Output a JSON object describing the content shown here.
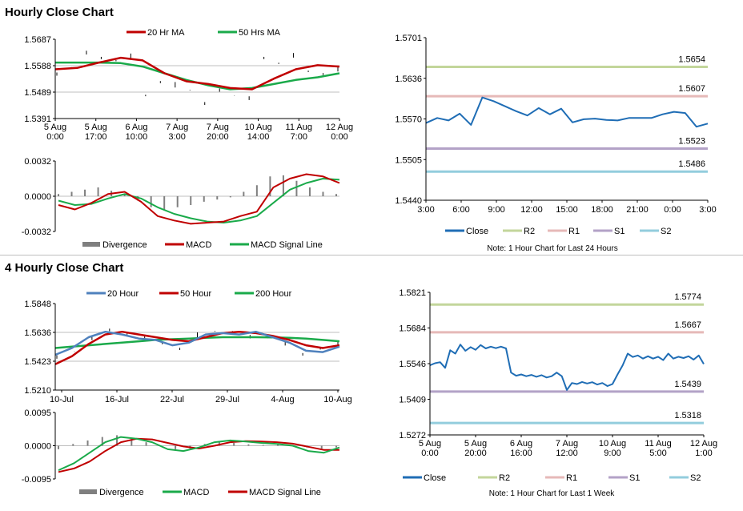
{
  "sections": {
    "hourly_title": "Hourly Close Chart",
    "four_hourly_title": "4 Hourly Close Chart"
  },
  "colors": {
    "red": "#c00000",
    "green": "#1aaa4a",
    "steel": "#4f81bd",
    "blue": "#1f6db5",
    "r2": "#c3d69b",
    "r1": "#e6b9b8",
    "s1": "#b3a2c7",
    "s2": "#93cddd",
    "bar": "#7f7f7f"
  },
  "chart_data": [
    {
      "id": "hourly_price",
      "type": "line",
      "legend": [
        "20 Hr MA",
        "50 Hrs MA"
      ],
      "y_ticks": [
        "1.5687",
        "1.5588",
        "1.5489",
        "1.5391"
      ],
      "ylim": [
        1.5391,
        1.5687
      ],
      "x_ticks": [
        [
          "5 Aug",
          "0:00"
        ],
        [
          "5 Aug",
          "17:00"
        ],
        [
          "6 Aug",
          "10:00"
        ],
        [
          "7 Aug",
          "3:00"
        ],
        [
          "7 Aug",
          "20:00"
        ],
        [
          "10 Aug",
          "14:00"
        ],
        [
          "11 Aug",
          "7:00"
        ],
        [
          "12 Aug",
          "0:00"
        ]
      ],
      "series": [
        {
          "name": "20 Hr MA",
          "values": [
            1.5575,
            1.558,
            1.56,
            1.5618,
            1.5608,
            1.556,
            1.553,
            1.552,
            1.5505,
            1.55,
            1.554,
            1.5575,
            1.559,
            1.5585
          ]
        },
        {
          "name": "50 Hrs MA",
          "values": [
            1.56,
            1.56,
            1.56,
            1.5598,
            1.5585,
            1.556,
            1.5535,
            1.5515,
            1.55,
            1.5505,
            1.552,
            1.5535,
            1.5545,
            1.556
          ]
        }
      ],
      "close": [
        1.556,
        1.5585,
        1.564,
        1.562,
        1.561,
        1.5628,
        1.548,
        1.553,
        1.552,
        1.55,
        1.545,
        1.55,
        1.548,
        1.547,
        1.562,
        1.56,
        1.563,
        1.557,
        1.556,
        1.558
      ]
    },
    {
      "id": "hourly_macd",
      "type": "line",
      "legend": [
        "Divergence",
        "MACD",
        "MACD Signal Line"
      ],
      "y_ticks": [
        "0.0032",
        "0.0000",
        "-0.0032"
      ],
      "ylim": [
        -0.0032,
        0.0032
      ],
      "divergence": [
        0.0002,
        0.0004,
        0.0006,
        0.0008,
        0.0005,
        0.0002,
        -0.0004,
        -0.001,
        -0.0012,
        -0.001,
        -0.0008,
        -0.0005,
        -0.0003,
        -0.0001,
        0.0004,
        0.001,
        0.0018,
        0.0019,
        0.0014,
        0.0008,
        0.0004,
        0.0002
      ],
      "series": [
        {
          "name": "MACD",
          "values": [
            -0.0008,
            -0.0012,
            -0.0006,
            0.0002,
            0.0004,
            -0.0005,
            -0.0018,
            -0.0022,
            -0.0025,
            -0.0024,
            -0.0023,
            -0.0018,
            -0.0014,
            0.0008,
            0.0016,
            0.002,
            0.0018,
            0.0012
          ]
        },
        {
          "name": "MACD Signal Line",
          "values": [
            -0.0004,
            -0.0008,
            -0.0007,
            -0.0002,
            0.0002,
            -0.0002,
            -0.001,
            -0.0016,
            -0.002,
            -0.0023,
            -0.0024,
            -0.0022,
            -0.0018,
            -0.0006,
            0.0006,
            0.0012,
            0.0016,
            0.0015
          ]
        }
      ]
    },
    {
      "id": "hourly_24h",
      "type": "line",
      "legend": [
        "Close",
        "R2",
        "R1",
        "S1",
        "S2"
      ],
      "y_ticks": [
        "1.5701",
        "1.5636",
        "1.5570",
        "1.5505",
        "1.5440"
      ],
      "ylim": [
        1.544,
        1.5701
      ],
      "x_ticks": [
        "3:00",
        "6:00",
        "9:00",
        "12:00",
        "15:00",
        "18:00",
        "21:00",
        "0:00",
        "3:00"
      ],
      "levels": [
        {
          "name": "R2",
          "label": "1.5654",
          "value": 1.5654
        },
        {
          "name": "R1",
          "label": "1.5607",
          "value": 1.5607
        },
        {
          "name": "S1",
          "label": "1.5523",
          "value": 1.5523
        },
        {
          "name": "S2",
          "label": "1.5486",
          "value": 1.5486
        }
      ],
      "series": [
        {
          "name": "Close",
          "values": [
            1.5564,
            1.5572,
            1.5568,
            1.5579,
            1.5561,
            1.5605,
            1.5599,
            1.5591,
            1.5583,
            1.5576,
            1.5588,
            1.5578,
            1.5587,
            1.5565,
            1.557,
            1.5571,
            1.5569,
            1.5568,
            1.5572,
            1.5572,
            1.5572,
            1.5578,
            1.5582,
            1.558,
            1.5558,
            1.5563
          ]
        }
      ],
      "note": "Note: 1 Hour Chart for Last 24 Hours"
    },
    {
      "id": "four_hourly_price",
      "type": "line",
      "legend": [
        "20 Hour",
        "50 Hour",
        "200 Hour"
      ],
      "y_ticks": [
        "1.5848",
        "1.5636",
        "1.5423",
        "1.5210"
      ],
      "ylim": [
        1.521,
        1.5848
      ],
      "x_ticks": [
        "10-Jul",
        "16-Jul",
        "22-Jul",
        "29-Jul",
        "4-Aug",
        "10-Aug"
      ],
      "series": [
        {
          "name": "20 Hour",
          "values": [
            1.547,
            1.552,
            1.56,
            1.564,
            1.562,
            1.559,
            1.558,
            1.554,
            1.556,
            1.562,
            1.563,
            1.562,
            1.564,
            1.56,
            1.556,
            1.55,
            1.549,
            1.553
          ]
        },
        {
          "name": "50 Hour",
          "values": [
            1.54,
            1.546,
            1.555,
            1.562,
            1.564,
            1.562,
            1.56,
            1.558,
            1.557,
            1.56,
            1.563,
            1.564,
            1.563,
            1.561,
            1.558,
            1.554,
            1.552,
            1.554
          ]
        },
        {
          "name": "200 Hour",
          "values": [
            1.552,
            1.553,
            1.554,
            1.555,
            1.556,
            1.557,
            1.558,
            1.5585,
            1.559,
            1.5595,
            1.56,
            1.56,
            1.56,
            1.5598,
            1.5595,
            1.559,
            1.558,
            1.557
          ]
        }
      ],
      "close": [
        1.546,
        1.55,
        1.56,
        1.566,
        1.563,
        1.56,
        1.556,
        1.552,
        1.562,
        1.565,
        1.564,
        1.561,
        1.56,
        1.556,
        1.548,
        1.552,
        1.556
      ]
    },
    {
      "id": "four_hourly_macd",
      "type": "line",
      "legend": [
        "Divergence",
        "MACD",
        "MACD Signal Line"
      ],
      "y_ticks": [
        "0.0095",
        "0.0000",
        "-0.0095"
      ],
      "ylim": [
        -0.0095,
        0.0095
      ],
      "divergence": [
        -0.001,
        0.0005,
        0.0015,
        0.0025,
        0.003,
        0.002,
        0.001,
        0.0,
        -0.001,
        -0.0008,
        0.0005,
        0.001,
        0.0008,
        0.0004,
        0.0002,
        0.0003,
        0.0,
        -0.0005,
        -0.0008,
        -0.0005
      ],
      "series": [
        {
          "name": "MACD",
          "values": [
            -0.007,
            -0.005,
            -0.002,
            0.001,
            0.0025,
            0.002,
            0.001,
            -0.001,
            -0.0015,
            -0.0005,
            0.001,
            0.0015,
            0.0012,
            0.0008,
            0.0005,
            0.0,
            -0.0015,
            -0.002,
            -0.0005
          ]
        },
        {
          "name": "MACD Signal Line",
          "values": [
            -0.0075,
            -0.0065,
            -0.0045,
            -0.0015,
            0.001,
            0.002,
            0.0018,
            0.0008,
            -0.0002,
            -0.0008,
            0.0,
            0.001,
            0.0013,
            0.0012,
            0.001,
            0.0006,
            -0.0003,
            -0.0012,
            -0.0012
          ]
        }
      ]
    },
    {
      "id": "four_hourly_week",
      "type": "line",
      "legend": [
        "Close",
        "R2",
        "R1",
        "S1",
        "S2"
      ],
      "y_ticks": [
        "1.5821",
        "1.5684",
        "1.5546",
        "1.5409",
        "1.5272"
      ],
      "ylim": [
        1.5272,
        1.5821
      ],
      "x_ticks": [
        [
          "5 Aug",
          "0:00"
        ],
        [
          "5 Aug",
          "20:00"
        ],
        [
          "6 Aug",
          "16:00"
        ],
        [
          "7 Aug",
          "12:00"
        ],
        [
          "10 Aug",
          "9:00"
        ],
        [
          "11 Aug",
          "5:00"
        ],
        [
          "12 Aug",
          "1:00"
        ]
      ],
      "levels": [
        {
          "name": "R2",
          "label": "1.5774",
          "value": 1.5774
        },
        {
          "name": "R1",
          "label": "1.5667",
          "value": 1.5667
        },
        {
          "name": "S1",
          "label": "1.5439",
          "value": 1.5439
        },
        {
          "name": "S2",
          "label": "1.5318",
          "value": 1.5318
        }
      ],
      "series": [
        {
          "name": "Close",
          "values": [
            1.554,
            1.5548,
            1.5552,
            1.553,
            1.5598,
            1.5585,
            1.562,
            1.5596,
            1.561,
            1.56,
            1.5618,
            1.5605,
            1.5612,
            1.5606,
            1.5612,
            1.5605,
            1.5512,
            1.55,
            1.5505,
            1.5498,
            1.5503,
            1.5496,
            1.5502,
            1.5493,
            1.5498,
            1.5512,
            1.5498,
            1.5445,
            1.5472,
            1.5468,
            1.5476,
            1.547,
            1.5475,
            1.5466,
            1.5472,
            1.546,
            1.5468,
            1.5505,
            1.554,
            1.5585,
            1.5572,
            1.5578,
            1.5566,
            1.5575,
            1.5566,
            1.5573,
            1.556,
            1.5585,
            1.5566,
            1.5573,
            1.5568,
            1.5575,
            1.5562,
            1.5578,
            1.5545
          ]
        }
      ],
      "note": "Note: 1 Hour Chart for Last 1 Week"
    }
  ]
}
